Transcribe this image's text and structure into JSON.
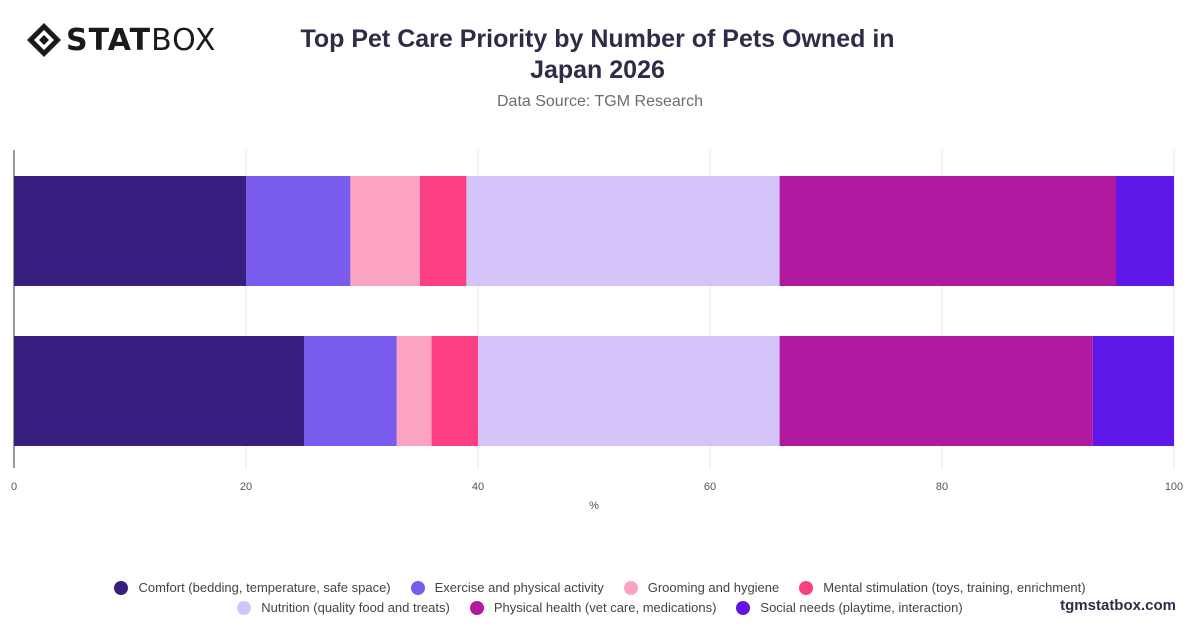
{
  "logo": {
    "text_bold": "STAT",
    "text_light": "BOX"
  },
  "title": "Top Pet Care Priority by Number of Pets Owned in Japan 2026",
  "subtitle": "Data Source: TGM Research",
  "brand": "tgmstatbox.com",
  "chart_data": {
    "type": "bar",
    "orientation": "horizontal",
    "stacked": true,
    "categories": [
      "",
      ""
    ],
    "xlabel": "%",
    "ylabel": "",
    "xlim": [
      0,
      100
    ],
    "xticks": [
      "0",
      "20",
      "40",
      "60",
      "80",
      "100"
    ],
    "grid": true,
    "legend_position": "bottom",
    "series": [
      {
        "name": "Comfort (bedding, temperature, safe space)",
        "color": "#371f7f",
        "values": [
          20,
          25
        ]
      },
      {
        "name": "Exercise and physical activity",
        "color": "#7a5cec",
        "values": [
          9,
          8
        ]
      },
      {
        "name": "Grooming and hygiene",
        "color": "#fca3c2",
        "values": [
          6,
          3
        ]
      },
      {
        "name": "Mental stimulation (toys, training, enrichment)",
        "color": "#fc3f82",
        "values": [
          4,
          4
        ]
      },
      {
        "name": "Nutrition (quality food and treats)",
        "color": "#d4c4f9",
        "values": [
          27,
          26
        ]
      },
      {
        "name": "Physical health (vet care, medications)",
        "color": "#b219a1",
        "values": [
          29,
          27
        ]
      },
      {
        "name": "Social needs (playtime, interaction)",
        "color": "#5e17e8",
        "values": [
          5,
          7
        ]
      }
    ]
  }
}
